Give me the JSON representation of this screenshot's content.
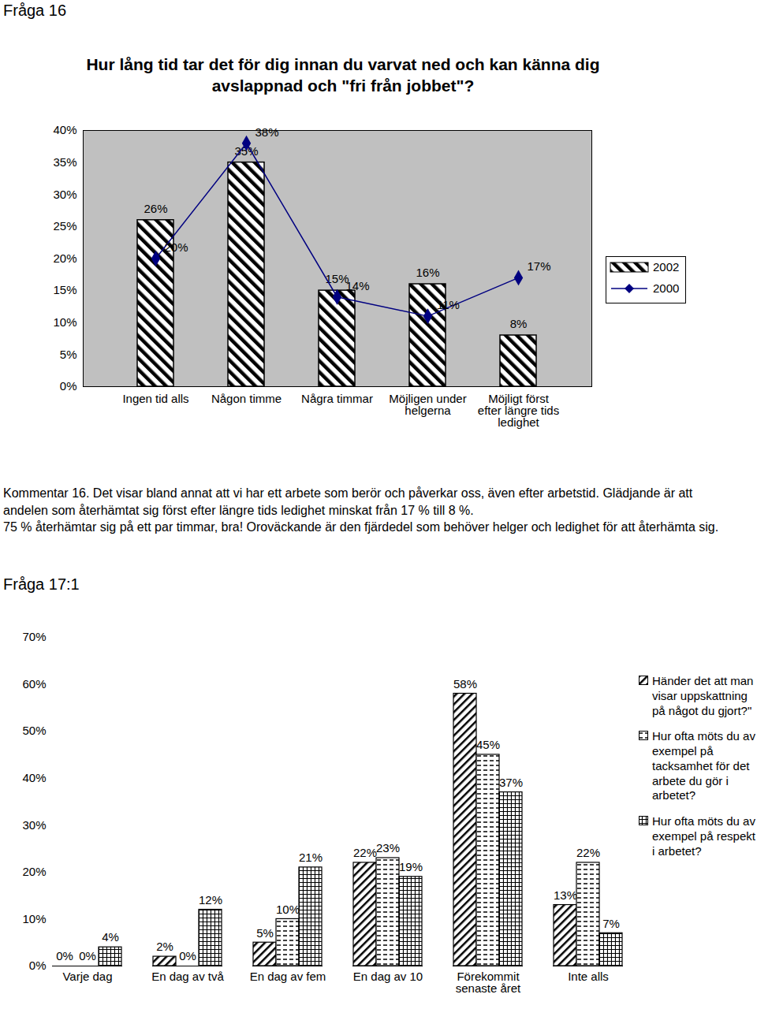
{
  "document": {
    "heading": "Fråga 16",
    "comment": [
      "Kommentar 16. Det visar bland annat att vi har ett arbete som berör och påverkar oss, även efter arbetstid. Glädjande är att andelen som återhämtat sig först efter längre tids ledighet minskat från 17 % till 8 %.",
      "75 % återhämtar sig på ett par timmar, bra! Oroväckande är den fjärdedel som behöver helger och ledighet för att återhämta sig."
    ],
    "heading2": "Fråga 17:1"
  },
  "chart_data": [
    {
      "type": "bar",
      "title": "Hur lång tid tar det för dig innan du varvat ned och kan känna dig avslappnad och \"fri från jobbet\"?",
      "categories": [
        "Ingen tid alls",
        "Någon timme",
        "Några timmar",
        "Möjligen under helgerna",
        "Möjligt först efter längre tids ledighet"
      ],
      "series": [
        {
          "name": "2002",
          "type": "bar",
          "color": "#000000",
          "values": [
            26,
            35,
            15,
            16,
            8
          ],
          "value_labels": [
            "26%",
            "35%",
            "15%",
            "16%",
            "8%"
          ]
        },
        {
          "name": "2000",
          "type": "line",
          "color": "#000080",
          "marker": "diamond",
          "values": [
            20,
            38,
            14,
            11,
            17
          ],
          "value_labels": [
            "20%",
            "38%",
            "14%",
            "11%",
            "17%"
          ]
        }
      ],
      "ylim": [
        0,
        40
      ],
      "yticks": [
        {
          "value": 0,
          "label": "0%"
        },
        {
          "value": 5,
          "label": "5%"
        },
        {
          "value": 10,
          "label": "10%"
        },
        {
          "value": 15,
          "label": "15%"
        },
        {
          "value": 20,
          "label": "20%"
        },
        {
          "value": 25,
          "label": "25%"
        },
        {
          "value": 30,
          "label": "30%"
        },
        {
          "value": 35,
          "label": "35%"
        },
        {
          "value": 40,
          "label": "40%"
        }
      ],
      "grid": false,
      "data_labels": true,
      "legend": "right"
    },
    {
      "type": "bar",
      "categories": [
        "Varje dag",
        "En dag av två",
        "En dag av fem",
        "En dag av 10",
        "Förekommit senaste året",
        "Inte alls"
      ],
      "series": [
        {
          "name": "Händer det att man visar uppskattning på något du gjort?\"",
          "color": "#000000",
          "values": [
            0,
            2,
            5,
            22,
            58,
            13
          ],
          "value_labels": [
            "0%",
            "2%",
            "5%",
            "22%",
            "58%",
            "13%"
          ]
        },
        {
          "name": "Hur ofta möts du av exempel på tacksamhet för det arbete du gör i arbetet?",
          "color": "#000000",
          "values": [
            0,
            0,
            10,
            23,
            45,
            22
          ],
          "value_labels": [
            "0%",
            "0%",
            "10%",
            "23%",
            "45%",
            "22%"
          ]
        },
        {
          "name": "Hur ofta möts du av exempel på respekt i arbetet?",
          "color": "#000000",
          "values": [
            4,
            12,
            21,
            19,
            37,
            7
          ],
          "value_labels": [
            "4%",
            "12%",
            "21%",
            "19%",
            "37%",
            "7%"
          ]
        }
      ],
      "ylim": [
        0,
        70
      ],
      "yticks": [
        {
          "value": 0,
          "label": "0%"
        },
        {
          "value": 10,
          "label": "10%"
        },
        {
          "value": 20,
          "label": "20%"
        },
        {
          "value": 30,
          "label": "30%"
        },
        {
          "value": 40,
          "label": "40%"
        },
        {
          "value": 50,
          "label": "50%"
        },
        {
          "value": 60,
          "label": "60%"
        },
        {
          "value": 70,
          "label": "70%"
        }
      ],
      "grid": false,
      "data_labels": true,
      "legend": "right"
    }
  ]
}
